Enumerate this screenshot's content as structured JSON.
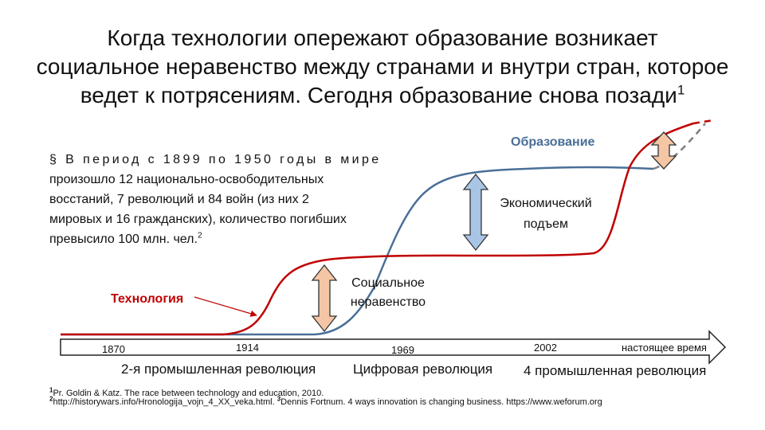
{
  "title": {
    "line1": "Когда технологии опережают образование возникает",
    "line2": "социальное неравенство между странами и внутри стран, которое",
    "line3": "ведет к потрясениям. Сегодня образование снова позади",
    "sup": "1"
  },
  "note": {
    "bullet": "§",
    "line1": "В период с 1899 по 1950 годы в мире",
    "line2": "произошло 12 национально-освободительных",
    "line3": "восстаний, 7 революций и 84 войн (из них 2",
    "line4": "мировых и 16 гражданских), количество погибших",
    "line5": "превысило 100 млн. чел.",
    "sup": "2"
  },
  "labels": {
    "education": "Образование",
    "technology": "Технология",
    "economic_line1": "Экономический",
    "economic_line2": "подъем",
    "inequality_line1": "Социальное",
    "inequality_line2": "неравенство"
  },
  "timeline": {
    "years": [
      "1870",
      "1914",
      "1969",
      "2002",
      "настоящее время"
    ],
    "eras": [
      "2-я промышленная революция",
      "Цифровая революция",
      "4 промышленная революция"
    ]
  },
  "footnotes": {
    "f1_num": "1",
    "f1_text": "Pr. Goldin & Katz. The race between technology and education, 2010.",
    "f2_num": "2",
    "f2_text": "http://historywars.info/Hronologija_vojn_4_XX_veka.html.",
    "f3_num": "3",
    "f3_text": "Dennis Fortnum. 4 ways innovation is changing business. https://www.weforum.org"
  },
  "colors": {
    "technology": "#c00000",
    "education": "#4a6f98",
    "forecast": "#808080",
    "arrow_orange": "#f4c6a5",
    "arrow_blue": "#a9c5e6"
  }
}
